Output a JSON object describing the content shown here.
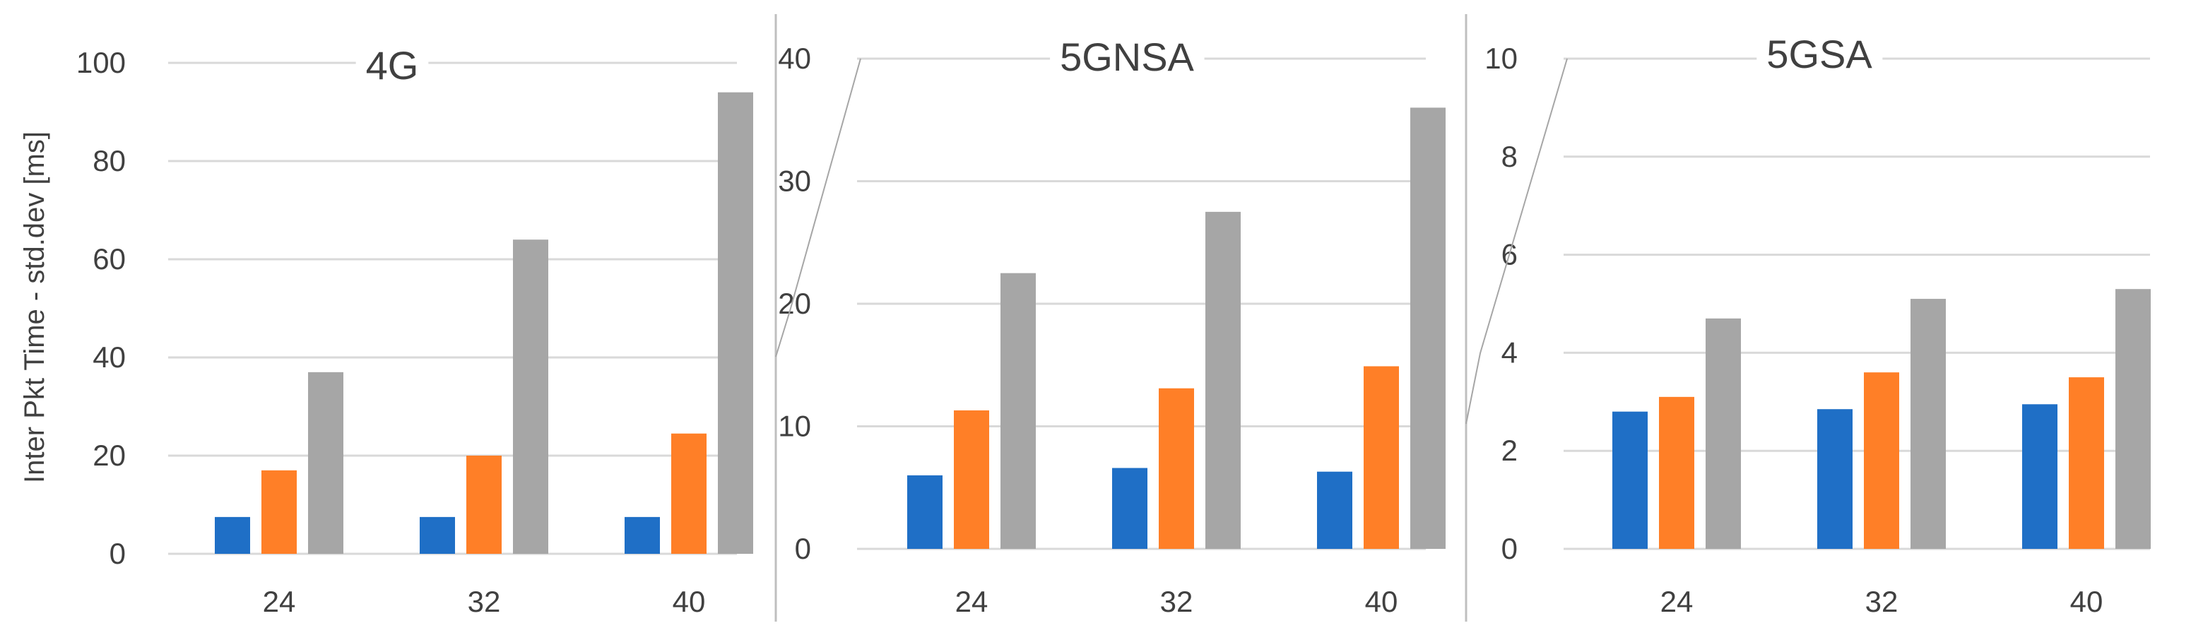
{
  "chart_data": [
    {
      "type": "bar",
      "title": "4G",
      "ylabel": "Inter Pkt Time - std.dev [ms]",
      "xlabel": "",
      "categories": [
        "24",
        "32",
        "40"
      ],
      "ylim": [
        0,
        100
      ],
      "yticks": [
        "0",
        "20",
        "40",
        "60",
        "80",
        "100"
      ],
      "grid": true,
      "series": [
        {
          "color": "#1f6fc6",
          "values": [
            7.5,
            7.5,
            7.5
          ]
        },
        {
          "color": "#ff7f27",
          "values": [
            17,
            20,
            24.5
          ]
        },
        {
          "color": "#a6a6a6",
          "values": [
            37,
            64,
            94
          ]
        }
      ]
    },
    {
      "type": "bar",
      "title": "5GNSA",
      "xlabel": "",
      "categories": [
        "24",
        "32",
        "40"
      ],
      "ylim": [
        0,
        40
      ],
      "yticks": [
        "0",
        "10",
        "20",
        "30",
        "40"
      ],
      "grid": true,
      "series": [
        {
          "color": "#1f6fc6",
          "values": [
            6,
            6.6,
            6.3
          ]
        },
        {
          "color": "#ff7f27",
          "values": [
            11.3,
            13.1,
            14.9
          ]
        },
        {
          "color": "#a6a6a6",
          "values": [
            22.5,
            27.5,
            36
          ]
        }
      ]
    },
    {
      "type": "bar",
      "title": "5GSA",
      "xlabel": "",
      "categories": [
        "24",
        "32",
        "40"
      ],
      "ylim": [
        0,
        10
      ],
      "yticks": [
        "0",
        "2",
        "4",
        "6",
        "8",
        "10"
      ],
      "grid": true,
      "series": [
        {
          "color": "#1f6fc6",
          "values": [
            2.8,
            2.85,
            2.95
          ]
        },
        {
          "color": "#ff7f27",
          "values": [
            3.1,
            3.6,
            3.5
          ]
        },
        {
          "color": "#a6a6a6",
          "values": [
            4.7,
            5.1,
            5.3
          ]
        }
      ]
    }
  ]
}
